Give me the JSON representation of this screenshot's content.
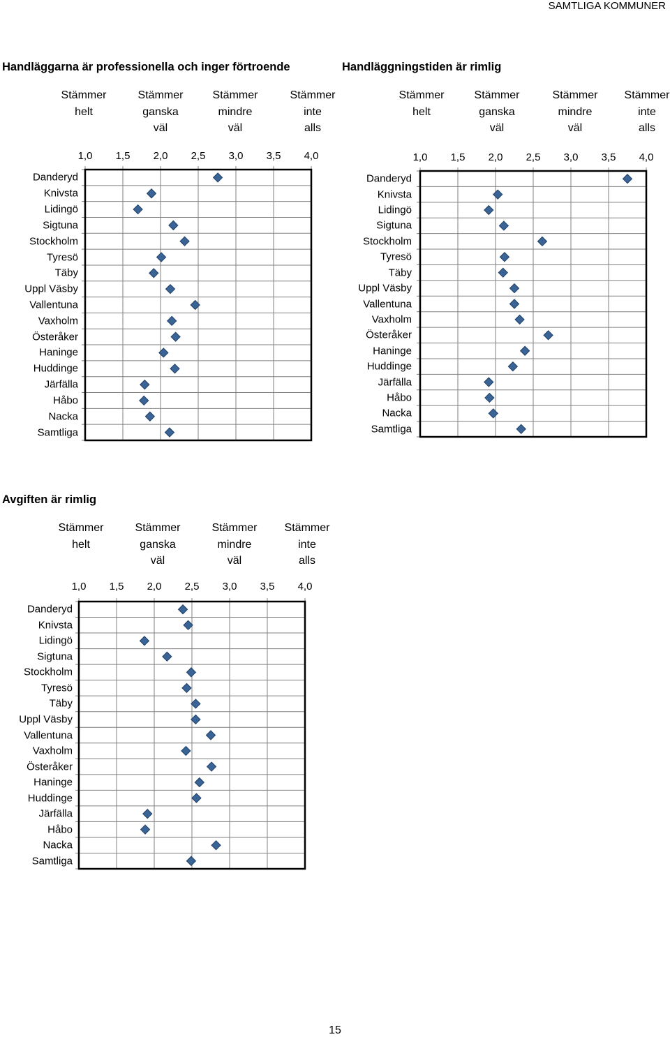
{
  "page": {
    "header_right": "SAMTLIGA KOMMUNER",
    "page_number": "15"
  },
  "colors": {
    "marker_fill": "#3a6496",
    "marker_stroke": "#1f3f66",
    "grid": "#808080",
    "frame": "#000000"
  },
  "chart_data": [
    {
      "type": "scatter",
      "marker": "diamond",
      "title": "Handläggarna är professionella och inger förtroende",
      "scale_labels": [
        [
          "Stämmer",
          "helt"
        ],
        [
          "Stämmer",
          "ganska",
          "väl"
        ],
        [
          "Stämmer",
          "mindre",
          "väl"
        ],
        [
          "Stämmer",
          "inte",
          "alls"
        ]
      ],
      "x_ticks": [
        "1,0",
        "1,5",
        "2,0",
        "2,5",
        "3,0",
        "3,5",
        "4,0"
      ],
      "xlim": [
        1.0,
        4.0
      ],
      "grid": true,
      "categories": [
        "Danderyd",
        "Knivsta",
        "Lidingö",
        "Sigtuna",
        "Stockholm",
        "Tyresö",
        "Täby",
        "Uppl Väsby",
        "Vallentuna",
        "Vaxholm",
        "Österåker",
        "Haninge",
        "Huddinge",
        "Järfälla",
        "Håbo",
        "Nacka",
        "Samtliga"
      ],
      "values": [
        2.76,
        1.88,
        1.7,
        2.17,
        2.32,
        2.01,
        1.91,
        2.13,
        2.46,
        2.15,
        2.2,
        2.04,
        2.19,
        1.79,
        1.78,
        1.86,
        2.12
      ]
    },
    {
      "type": "scatter",
      "marker": "diamond",
      "title": "Handläggningstiden är rimlig",
      "scale_labels": [
        [
          "Stämmer",
          "helt"
        ],
        [
          "Stämmer",
          "ganska",
          "väl"
        ],
        [
          "Stämmer",
          "mindre",
          "väl"
        ],
        [
          "Stämmer",
          "inte",
          "alls"
        ]
      ],
      "x_ticks": [
        "1,0",
        "1,5",
        "2,0",
        "2,5",
        "3,0",
        "3,5",
        "4,0"
      ],
      "xlim": [
        1.0,
        4.0
      ],
      "grid": true,
      "categories": [
        "Danderyd",
        "Knivsta",
        "Lidingö",
        "Sigtuna",
        "Stockholm",
        "Tyresö",
        "Täby",
        "Uppl Väsby",
        "Vallentuna",
        "Vaxholm",
        "Österåker",
        "Haninge",
        "Huddinge",
        "Järfälla",
        "Håbo",
        "Nacka",
        "Samtliga"
      ],
      "values": [
        3.75,
        2.03,
        1.91,
        2.11,
        2.62,
        2.12,
        2.1,
        2.25,
        2.25,
        2.32,
        2.7,
        2.39,
        2.23,
        1.91,
        1.92,
        1.97,
        2.34
      ]
    },
    {
      "type": "scatter",
      "marker": "diamond",
      "title": "Avgiften är rimlig",
      "scale_labels": [
        [
          "Stämmer",
          "helt"
        ],
        [
          "Stämmer",
          "ganska",
          "väl"
        ],
        [
          "Stämmer",
          "mindre",
          "väl"
        ],
        [
          "Stämmer",
          "inte",
          "alls"
        ]
      ],
      "x_ticks": [
        "1,0",
        "1,5",
        "2,0",
        "2,5",
        "3,0",
        "3,5",
        "4,0"
      ],
      "xlim": [
        1.0,
        4.0
      ],
      "grid": true,
      "categories": [
        "Danderyd",
        "Knivsta",
        "Lidingö",
        "Sigtuna",
        "Stockholm",
        "Tyresö",
        "Täby",
        "Uppl Väsby",
        "Vallentuna",
        "Vaxholm",
        "Österåker",
        "Haninge",
        "Huddinge",
        "Järfälla",
        "Håbo",
        "Nacka",
        "Samtliga"
      ],
      "values": [
        2.38,
        2.45,
        1.87,
        2.17,
        2.49,
        2.43,
        2.55,
        2.55,
        2.75,
        2.42,
        2.76,
        2.6,
        2.56,
        1.91,
        1.88,
        2.82,
        2.49
      ]
    }
  ]
}
